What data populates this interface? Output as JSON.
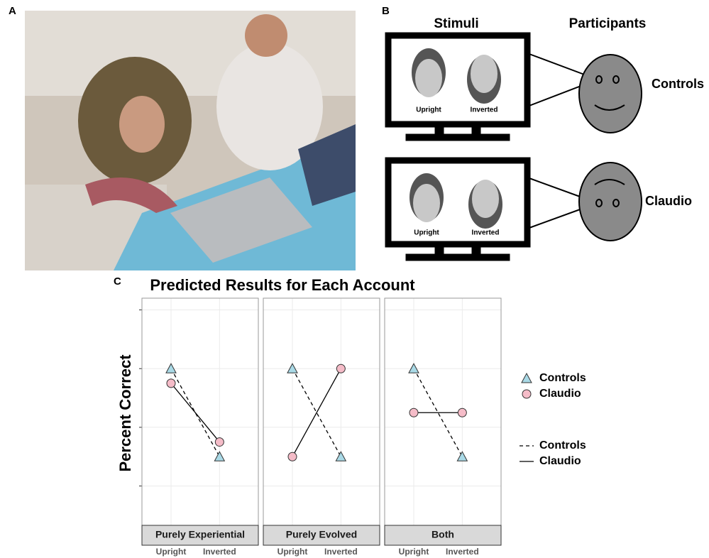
{
  "panel_labels": [
    "A",
    "B",
    "C"
  ],
  "diagram": {
    "stimuli_title": "Stimuli",
    "participants_title": "Participants",
    "rows": [
      {
        "participant": "Controls",
        "left_face": "Upright",
        "right_face": "Inverted"
      },
      {
        "participant": "Claudio",
        "left_face": "Upright",
        "right_face": "Inverted"
      }
    ]
  },
  "chart_header": {
    "title": "Predicted Results for Each Account",
    "y_label": "Percent Correct"
  },
  "chart_data": [
    {
      "type": "line",
      "title": "Purely Experiential",
      "categories": [
        "Upright",
        "Inverted"
      ],
      "ylim": [
        0.33,
        4.2
      ],
      "yticks": [
        1,
        2,
        3,
        4
      ],
      "grid": true,
      "series": [
        {
          "name": "Controls",
          "color": "#a9d9e6",
          "marker": "triangle",
          "linestyle": "dashed",
          "values": [
            3,
            1.5
          ]
        },
        {
          "name": "Claudio",
          "color": "#f5bcc8",
          "marker": "circle",
          "linestyle": "solid",
          "values": [
            2.75,
            1.75
          ]
        }
      ]
    },
    {
      "type": "line",
      "title": "Purely Evolved",
      "categories": [
        "Upright",
        "Inverted"
      ],
      "ylim": [
        0.33,
        4.2
      ],
      "yticks": [
        1,
        2,
        3,
        4
      ],
      "grid": true,
      "series": [
        {
          "name": "Controls",
          "color": "#a9d9e6",
          "marker": "triangle",
          "linestyle": "dashed",
          "values": [
            3,
            1.5
          ]
        },
        {
          "name": "Claudio",
          "color": "#f5bcc8",
          "marker": "circle",
          "linestyle": "solid",
          "values": [
            1.5,
            3
          ]
        }
      ]
    },
    {
      "type": "line",
      "title": "Both",
      "categories": [
        "Upright",
        "Inverted"
      ],
      "ylim": [
        0.33,
        4.2
      ],
      "yticks": [
        1,
        2,
        3,
        4
      ],
      "grid": true,
      "series": [
        {
          "name": "Controls",
          "color": "#a9d9e6",
          "marker": "triangle",
          "linestyle": "dashed",
          "values": [
            3,
            1.5
          ]
        },
        {
          "name": "Claudio",
          "color": "#f5bcc8",
          "marker": "circle",
          "linestyle": "solid",
          "values": [
            2.25,
            2.25
          ]
        }
      ]
    }
  ]
}
